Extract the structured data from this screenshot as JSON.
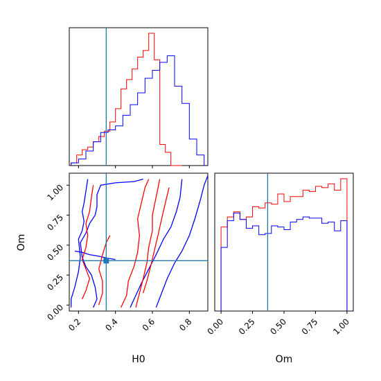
{
  "chart_data": {
    "type": "corner",
    "parameters": [
      "H0",
      "Om"
    ],
    "truth": {
      "H0": 0.35,
      "Om": 0.37
    },
    "colors": {
      "series_a": "#ff0000",
      "series_b": "#0000ff",
      "truth": "#1f77b4"
    },
    "grid": false,
    "legend": "none",
    "panels": [
      {
        "id": "hist-H0",
        "type": "histogram",
        "xlim": [
          0.15,
          0.9
        ],
        "series": [
          {
            "color": "#ff0000",
            "bin_edges": [
              0.16,
              0.19,
              0.22,
              0.25,
              0.28,
              0.31,
              0.34,
              0.37,
              0.4,
              0.43,
              0.46,
              0.49,
              0.52,
              0.55,
              0.58,
              0.61,
              0.64,
              0.67,
              0.7,
              0.73,
              0.76
            ],
            "heights": [
              0.02,
              0.08,
              0.12,
              0.14,
              0.18,
              0.22,
              0.26,
              0.33,
              0.43,
              0.58,
              0.65,
              0.73,
              0.82,
              0.87,
              1.0,
              0.8,
              0.16,
              0.1,
              0.0,
              0.0
            ]
          },
          {
            "color": "#0000ff",
            "bin_edges": [
              0.16,
              0.2,
              0.24,
              0.28,
              0.32,
              0.36,
              0.4,
              0.44,
              0.48,
              0.52,
              0.56,
              0.6,
              0.64,
              0.68,
              0.72,
              0.76,
              0.8,
              0.84,
              0.88
            ],
            "heights": [
              0.02,
              0.05,
              0.11,
              0.18,
              0.25,
              0.27,
              0.3,
              0.38,
              0.46,
              0.55,
              0.66,
              0.72,
              0.78,
              0.83,
              0.6,
              0.47,
              0.2,
              0.08
            ]
          }
        ]
      },
      {
        "id": "hist-Om",
        "type": "histogram",
        "xlim": [
          -0.05,
          1.05
        ],
        "xticks": [
          "0.00",
          "0.25",
          "0.50",
          "0.75",
          "1.00"
        ],
        "xticks_values": [
          0,
          0.25,
          0.5,
          0.75,
          1.0
        ],
        "xlabel": "Om",
        "series": [
          {
            "color": "#ff0000",
            "bin_edges": [
              0.0,
              0.05,
              0.1,
              0.15,
              0.2,
              0.25,
              0.3,
              0.35,
              0.4,
              0.45,
              0.5,
              0.55,
              0.6,
              0.65,
              0.7,
              0.75,
              0.8,
              0.85,
              0.9,
              0.95,
              1.0
            ],
            "heights": [
              0.66,
              0.74,
              0.78,
              0.72,
              0.74,
              0.82,
              0.81,
              0.85,
              0.84,
              0.92,
              0.86,
              0.9,
              0.9,
              0.95,
              0.94,
              0.98,
              0.97,
              1.0,
              0.95,
              1.04
            ]
          },
          {
            "color": "#0000ff",
            "bin_edges": [
              0.0,
              0.05,
              0.1,
              0.15,
              0.2,
              0.25,
              0.3,
              0.35,
              0.4,
              0.45,
              0.5,
              0.55,
              0.6,
              0.65,
              0.7,
              0.75,
              0.8,
              0.85,
              0.9,
              0.95,
              1.0
            ],
            "heights": [
              0.5,
              0.71,
              0.77,
              0.72,
              0.65,
              0.67,
              0.6,
              0.61,
              0.67,
              0.66,
              0.64,
              0.7,
              0.72,
              0.74,
              0.73,
              0.73,
              0.69,
              0.7,
              0.63,
              0.71
            ]
          }
        ]
      },
      {
        "id": "contour-H0-Om",
        "type": "contour",
        "xlim": [
          0.15,
          0.9
        ],
        "ylim": [
          -0.05,
          1.1
        ],
        "xticks": [
          "0.2",
          "0.4",
          "0.6",
          "0.8"
        ],
        "xticks_values": [
          0.2,
          0.4,
          0.6,
          0.8
        ],
        "yticks": [
          "0.00",
          "0.25",
          "0.50",
          "0.75",
          "1.00"
        ],
        "yticks_values": [
          0,
          0.25,
          0.5,
          0.75,
          1.0
        ],
        "xlabel": "H0",
        "ylabel": "Om",
        "series": [
          {
            "color": "#0000ff",
            "contours": [
              [
                [
                  0.16,
                  -0.02
                ],
                [
                  0.16,
                  0.05
                ],
                [
                  0.18,
                  0.15
                ],
                [
                  0.2,
                  0.28
                ],
                [
                  0.21,
                  0.4
                ],
                [
                  0.2,
                  0.55
                ],
                [
                  0.22,
                  0.62
                ],
                [
                  0.23,
                  0.7
                ],
                [
                  0.22,
                  0.78
                ],
                [
                  0.23,
                  0.85
                ],
                [
                  0.24,
                  0.95
                ],
                [
                  0.25,
                  1.05
                ]
              ],
              [
                [
                  0.62,
                  -0.02
                ],
                [
                  0.65,
                  0.1
                ],
                [
                  0.68,
                  0.22
                ],
                [
                  0.72,
                  0.35
                ],
                [
                  0.76,
                  0.45
                ],
                [
                  0.8,
                  0.58
                ],
                [
                  0.83,
                  0.72
                ],
                [
                  0.86,
                  0.88
                ],
                [
                  0.88,
                  1.0
                ],
                [
                  0.9,
                  1.08
                ]
              ],
              [
                [
                  0.48,
                  -0.02
                ],
                [
                  0.51,
                  0.08
                ],
                [
                  0.54,
                  0.18
                ],
                [
                  0.58,
                  0.3
                ],
                [
                  0.62,
                  0.42
                ],
                [
                  0.66,
                  0.55
                ],
                [
                  0.7,
                  0.65
                ],
                [
                  0.73,
                  0.78
                ],
                [
                  0.75,
                  0.9
                ],
                [
                  0.76,
                  1.05
                ]
              ],
              [
                [
                  0.28,
                  -0.02
                ],
                [
                  0.3,
                  0.05
                ],
                [
                  0.29,
                  0.15
                ],
                [
                  0.27,
                  0.25
                ],
                [
                  0.24,
                  0.32
                ],
                [
                  0.22,
                  0.4
                ],
                [
                  0.21,
                  0.52
                ],
                [
                  0.24,
                  0.6
                ],
                [
                  0.26,
                  0.68
                ],
                [
                  0.29,
                  0.75
                ],
                [
                  0.3,
                  0.82
                ],
                [
                  0.3,
                  0.92
                ],
                [
                  0.32,
                  1.0
                ],
                [
                  0.4,
                  1.02
                ],
                [
                  0.5,
                  1.03
                ],
                [
                  0.55,
                  1.05
                ]
              ],
              [
                [
                  0.18,
                  0.45
                ],
                [
                  0.22,
                  0.44
                ],
                [
                  0.26,
                  0.42
                ],
                [
                  0.3,
                  0.41
                ],
                [
                  0.36,
                  0.39
                ],
                [
                  0.4,
                  0.38
                ]
              ]
            ]
          },
          {
            "color": "#ff0000",
            "contours": [
              [
                [
                  0.51,
                  -0.02
                ],
                [
                  0.53,
                  0.1
                ],
                [
                  0.55,
                  0.22
                ],
                [
                  0.57,
                  0.35
                ],
                [
                  0.58,
                  0.48
                ],
                [
                  0.6,
                  0.62
                ],
                [
                  0.6,
                  0.75
                ],
                [
                  0.62,
                  0.9
                ],
                [
                  0.64,
                  1.05
                ]
              ],
              [
                [
                  0.55,
                  0.1
                ],
                [
                  0.57,
                  0.2
                ],
                [
                  0.59,
                  0.32
                ],
                [
                  0.61,
                  0.45
                ],
                [
                  0.63,
                  0.58
                ],
                [
                  0.65,
                  0.72
                ],
                [
                  0.67,
                  0.85
                ],
                [
                  0.69,
                  0.98
                ]
              ],
              [
                [
                  0.43,
                  -0.02
                ],
                [
                  0.46,
                  0.08
                ],
                [
                  0.47,
                  0.2
                ],
                [
                  0.5,
                  0.32
                ],
                [
                  0.52,
                  0.44
                ],
                [
                  0.53,
                  0.58
                ],
                [
                  0.52,
                  0.72
                ],
                [
                  0.54,
                  0.85
                ],
                [
                  0.56,
                  0.98
                ],
                [
                  0.58,
                  1.05
                ]
              ],
              [
                [
                  0.22,
                  0.05
                ],
                [
                  0.24,
                  0.12
                ],
                [
                  0.26,
                  0.22
                ],
                [
                  0.24,
                  0.3
                ],
                [
                  0.22,
                  0.38
                ],
                [
                  0.24,
                  0.48
                ],
                [
                  0.25,
                  0.58
                ],
                [
                  0.24,
                  0.68
                ],
                [
                  0.26,
                  0.78
                ],
                [
                  0.27,
                  0.9
                ],
                [
                  0.28,
                  1.0
                ]
              ],
              [
                [
                  0.31,
                  0.0
                ],
                [
                  0.33,
                  0.1
                ],
                [
                  0.33,
                  0.2
                ],
                [
                  0.31,
                  0.3
                ],
                [
                  0.33,
                  0.42
                ],
                [
                  0.35,
                  0.52
                ],
                [
                  0.37,
                  0.58
                ]
              ]
            ]
          }
        ]
      }
    ]
  }
}
